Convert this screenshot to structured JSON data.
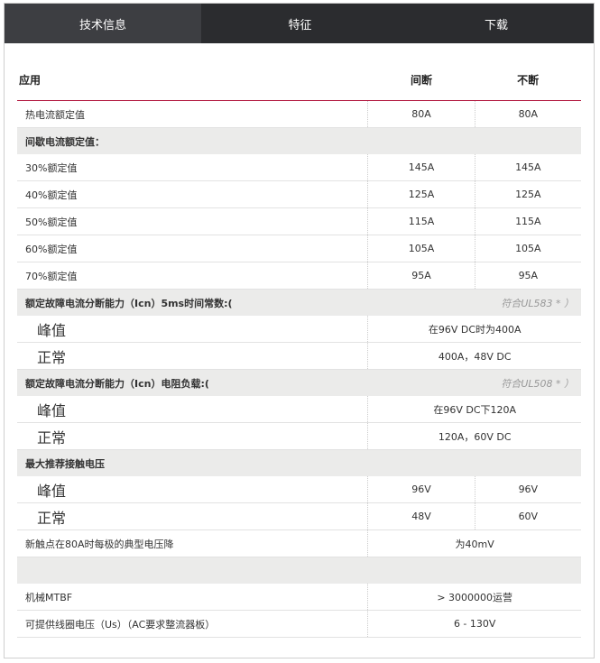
{
  "tabs": [
    {
      "label": "技术信息",
      "active": true
    },
    {
      "label": "特征"
    },
    {
      "label": "下载"
    }
  ],
  "table": {
    "headers": [
      "应用",
      "间断",
      "不断"
    ],
    "rows": [
      {
        "type": "row",
        "label": "热电流额定值",
        "values": [
          "80A",
          "80A"
        ]
      },
      {
        "type": "section",
        "label": "间歇电流额定值："
      },
      {
        "type": "row",
        "label": "30%额定值",
        "values": [
          "145A",
          "145A"
        ]
      },
      {
        "type": "row",
        "label": "40%额定值",
        "values": [
          "125A",
          "125A"
        ]
      },
      {
        "type": "row",
        "label": "50%额定值",
        "values": [
          "115A",
          "115A"
        ]
      },
      {
        "type": "row",
        "label": "60%额定值",
        "values": [
          "105A",
          "105A"
        ]
      },
      {
        "type": "row",
        "label": "70%额定值",
        "values": [
          "95A",
          "95A"
        ]
      },
      {
        "type": "section",
        "label": "额定故障电流分断能力（Icn）5ms时间常数:(",
        "note": "符合UL583 * ）"
      },
      {
        "type": "big",
        "label": "峰值",
        "span": "在96V DC时为400A"
      },
      {
        "type": "big",
        "label": "正常",
        "span": "400A，48V DC"
      },
      {
        "type": "section",
        "label": "额定故障电流分断能力（Icn）电阻负载:(",
        "note": "符合UL508 * ）"
      },
      {
        "type": "big",
        "label": "峰值",
        "span": "在96V DC下120A"
      },
      {
        "type": "big",
        "label": "正常",
        "span": "120A，60V DC"
      },
      {
        "type": "section",
        "label": "最大推荐接触电压"
      },
      {
        "type": "big",
        "label": "峰值",
        "values": [
          "96V",
          "96V"
        ]
      },
      {
        "type": "big",
        "label": "正常",
        "values": [
          "48V",
          "60V"
        ]
      },
      {
        "type": "row",
        "label": "新触点在80A时每极的典型电压降",
        "span": "为40mV"
      },
      {
        "type": "section",
        "label": ""
      },
      {
        "type": "row",
        "label": "机械MTBF",
        "span": "> 3000000运营"
      },
      {
        "type": "row",
        "label": "可提供线圈电压（Us）（AC要求整流器板）",
        "span": "6 - 130V"
      }
    ]
  }
}
